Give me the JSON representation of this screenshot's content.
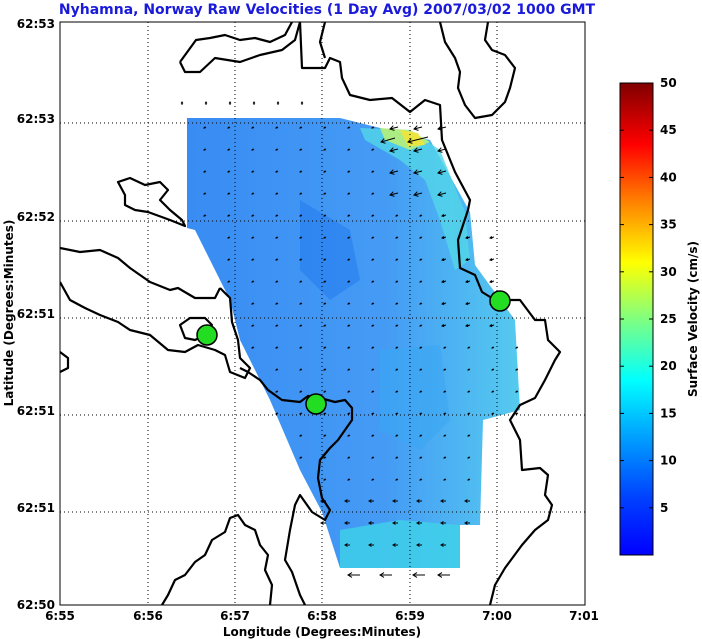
{
  "chart_data": {
    "type": "heatmap",
    "title": "Nyhamna, Norway Raw Velocities (1 Day Avg) 2007/03/02 1000 GMT",
    "xlabel": "Longitude (Degrees:Minutes)",
    "ylabel": "Latitude (Degrees:Minutes)",
    "x_ticks": [
      "6:55",
      "6:56",
      "6:57",
      "6:58",
      "6:59",
      "7:00",
      "7:01"
    ],
    "y_ticks": [
      "62:50",
      "62:51",
      "62:51",
      "62:51",
      "62:52",
      "62:53",
      "62:53"
    ],
    "grid": true,
    "colorbar": {
      "label": "Surface Velocity (cm/s)",
      "ticks": [
        "5",
        "10",
        "15",
        "20",
        "25",
        "30",
        "35",
        "40",
        "45",
        "50"
      ],
      "range": [
        0,
        50
      ],
      "colormap": "jet"
    },
    "stations": 3,
    "colors": {
      "land": "#000000",
      "station": "#22dd22",
      "title": "#1a1adb",
      "background": "#ffffff"
    }
  }
}
